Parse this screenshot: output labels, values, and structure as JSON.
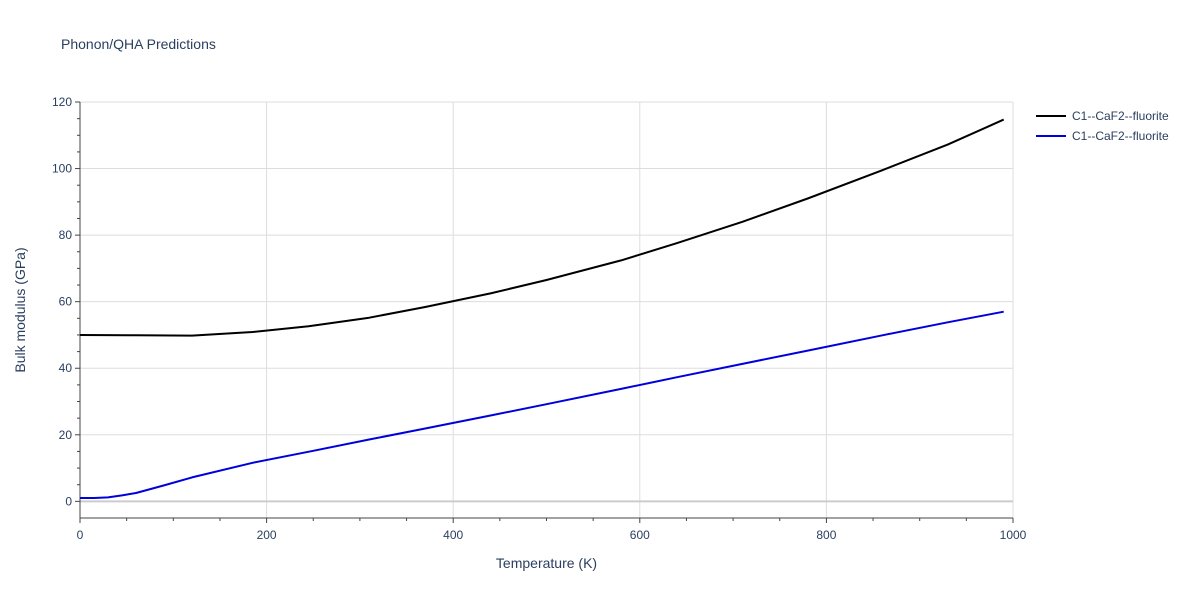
{
  "title": "Phonon/QHA Predictions",
  "chart_data": {
    "type": "line",
    "xlabel": "Temperature (K)",
    "ylabel": "Bulk modulus (GPa)",
    "xlim": [
      0,
      1000
    ],
    "ylim": [
      -5,
      120
    ],
    "xticks": [
      0,
      200,
      400,
      600,
      800,
      1000
    ],
    "yticks": [
      0,
      20,
      40,
      60,
      80,
      100,
      120
    ],
    "grid": true,
    "legend_position": "top-right outside",
    "series": [
      {
        "name": "C1--CaF2--fluorite",
        "color": "#000000",
        "x": [
          0,
          60,
          120,
          185,
          245,
          310,
          370,
          440,
          500,
          580,
          640,
          710,
          780,
          860,
          930,
          990
        ],
        "y": [
          50.0,
          49.9,
          49.8,
          50.9,
          52.6,
          55.2,
          58.4,
          62.5,
          66.5,
          72.4,
          77.6,
          84.0,
          91.0,
          99.5,
          107.2,
          114.7
        ]
      },
      {
        "name": "C1--CaF2--fluorite",
        "color": "#0000dd",
        "x": [
          0,
          15,
          30,
          45,
          60,
          90,
          120,
          185,
          250,
          310,
          370,
          440,
          500,
          580,
          640,
          710,
          780,
          860,
          930,
          990
        ],
        "y": [
          1.0,
          1.0,
          1.2,
          1.8,
          2.5,
          4.8,
          7.2,
          11.6,
          15.2,
          18.6,
          21.9,
          25.8,
          29.2,
          33.8,
          37.3,
          41.3,
          45.3,
          49.9,
          53.8,
          57.0
        ]
      }
    ]
  }
}
